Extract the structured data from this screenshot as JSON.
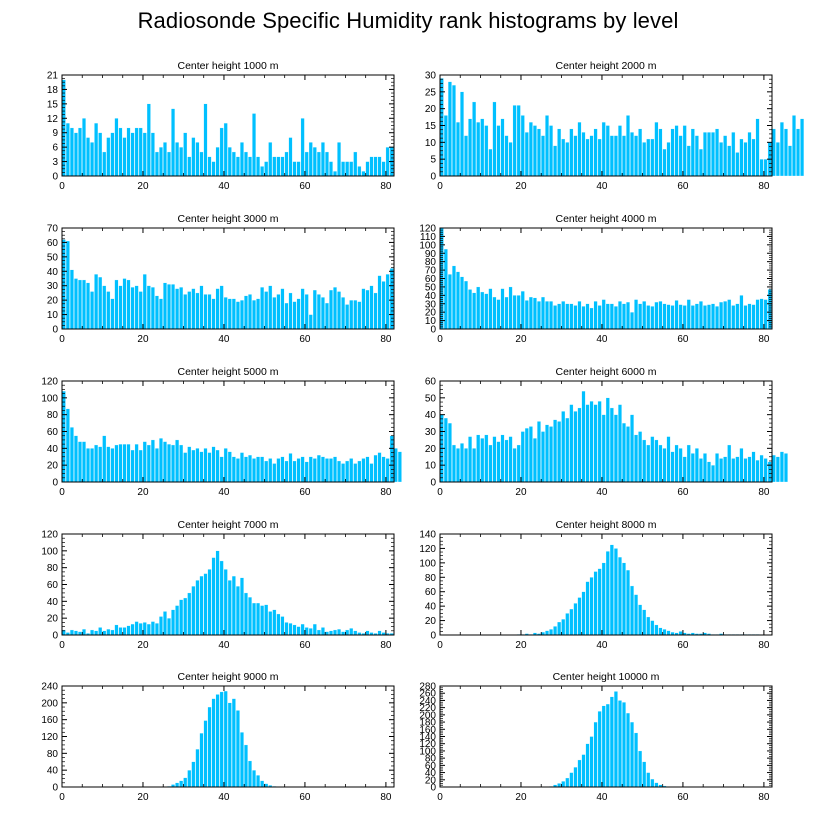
{
  "title": "Radiosonde Specific Humidity rank histograms by level",
  "colors": {
    "bar": "#00c0ff",
    "bar_edge": "#ffffff",
    "axis": "#000000"
  },
  "chart_data": [
    {
      "type": "bar",
      "title": "Center height 1000 m",
      "xlim": [
        0,
        82
      ],
      "xticks": [
        0,
        20,
        40,
        60,
        80
      ],
      "ylim": [
        0,
        21
      ],
      "yticks": [
        0,
        3,
        6,
        9,
        12,
        15,
        18,
        21
      ],
      "values": [
        20,
        11,
        10,
        9,
        10,
        12,
        8,
        7,
        11,
        9,
        5,
        8,
        9,
        12,
        10,
        8,
        10,
        9,
        10,
        10,
        9,
        15,
        9,
        5,
        6,
        7,
        5,
        14,
        7,
        6,
        9,
        4,
        8,
        7,
        5,
        15,
        4,
        3,
        6,
        10,
        11,
        6,
        5,
        4,
        7,
        5,
        4,
        13,
        4,
        2,
        3,
        7,
        4,
        4,
        4,
        5,
        8,
        3,
        3,
        12,
        5,
        7,
        6,
        5,
        7,
        5,
        3,
        1,
        7,
        3,
        3,
        3,
        5,
        2,
        1,
        3,
        4,
        4,
        4,
        3,
        6,
        6
      ]
    },
    {
      "type": "bar",
      "title": "Center height 2000 m",
      "xlim": [
        0,
        82
      ],
      "xticks": [
        0,
        20,
        40,
        60,
        80
      ],
      "ylim": [
        0,
        30
      ],
      "yticks": [
        0,
        5,
        10,
        15,
        20,
        25,
        30
      ],
      "values": [
        29,
        18,
        28,
        27,
        16,
        25,
        12,
        17,
        22,
        16,
        17,
        15,
        8,
        22,
        15,
        17,
        12,
        10,
        21,
        21,
        18,
        13,
        16,
        15,
        14,
        12,
        18,
        15,
        9,
        14,
        11,
        10,
        14,
        12,
        16,
        13,
        11,
        12,
        14,
        11,
        16,
        15,
        12,
        12,
        15,
        12,
        18,
        13,
        12,
        14,
        10,
        11,
        11,
        16,
        14,
        8,
        10,
        14,
        15,
        12,
        15,
        9,
        14,
        12,
        8,
        13,
        13,
        13,
        14,
        10,
        12,
        9,
        13,
        7,
        11,
        10,
        13,
        11,
        17,
        5,
        5,
        10,
        14,
        10,
        16,
        14,
        9,
        18,
        14,
        17
      ]
    },
    {
      "type": "bar",
      "title": "Center height 3000 m",
      "xlim": [
        0,
        82
      ],
      "xticks": [
        0,
        20,
        40,
        60,
        80
      ],
      "ylim": [
        0,
        70
      ],
      "yticks": [
        0,
        10,
        20,
        30,
        40,
        50,
        60,
        70
      ],
      "values": [
        62,
        61,
        41,
        35,
        34,
        34,
        32,
        26,
        38,
        36,
        30,
        26,
        21,
        34,
        30,
        35,
        34,
        29,
        30,
        26,
        38,
        30,
        29,
        23,
        21,
        32,
        31,
        31,
        28,
        29,
        24,
        26,
        28,
        25,
        30,
        24,
        24,
        21,
        28,
        30,
        22,
        21,
        21,
        19,
        20,
        23,
        24,
        20,
        21,
        29,
        26,
        30,
        22,
        24,
        28,
        18,
        25,
        19,
        21,
        28,
        24,
        10,
        27,
        24,
        22,
        18,
        27,
        29,
        26,
        22,
        17,
        20,
        20,
        19,
        28,
        27,
        30,
        25,
        37,
        33,
        38,
        42
      ]
    },
    {
      "type": "bar",
      "title": "Center height 4000 m",
      "xlim": [
        0,
        82
      ],
      "xticks": [
        0,
        20,
        40,
        60,
        80
      ],
      "ylim": [
        0,
        120
      ],
      "yticks": [
        0,
        10,
        20,
        30,
        40,
        50,
        60,
        70,
        80,
        90,
        100,
        110,
        120
      ],
      "values": [
        120,
        95,
        65,
        75,
        68,
        62,
        57,
        47,
        43,
        50,
        44,
        42,
        48,
        38,
        35,
        48,
        38,
        50,
        40,
        40,
        45,
        34,
        38,
        37,
        33,
        38,
        33,
        33,
        28,
        30,
        33,
        30,
        30,
        28,
        33,
        27,
        30,
        25,
        33,
        28,
        35,
        30,
        30,
        27,
        33,
        30,
        32,
        20,
        35,
        30,
        33,
        28,
        27,
        32,
        33,
        30,
        29,
        28,
        34,
        29,
        28,
        35,
        28,
        30,
        33,
        28,
        29,
        30,
        27,
        32,
        33,
        35,
        28,
        30,
        40,
        28,
        30,
        29,
        35,
        36,
        35,
        47
      ]
    },
    {
      "type": "bar",
      "title": "Center height 5000 m",
      "xlim": [
        0,
        82
      ],
      "xticks": [
        0,
        20,
        40,
        60,
        80
      ],
      "ylim": [
        0,
        120
      ],
      "yticks": [
        0,
        20,
        40,
        60,
        80,
        100,
        120
      ],
      "values": [
        108,
        87,
        65,
        55,
        48,
        48,
        40,
        40,
        44,
        42,
        55,
        42,
        40,
        44,
        45,
        45,
        45,
        38,
        45,
        38,
        48,
        44,
        50,
        40,
        52,
        48,
        45,
        44,
        50,
        44,
        35,
        42,
        38,
        40,
        36,
        40,
        35,
        42,
        38,
        30,
        40,
        36,
        30,
        28,
        35,
        30,
        32,
        28,
        30,
        30,
        25,
        28,
        22,
        28,
        30,
        25,
        34,
        25,
        28,
        30,
        24,
        30,
        28,
        32,
        30,
        28,
        28,
        30,
        25,
        22,
        25,
        28,
        22,
        25,
        28,
        30,
        22,
        32,
        35,
        30,
        28,
        55,
        40,
        36
      ]
    },
    {
      "type": "bar",
      "title": "Center height 6000 m",
      "xlim": [
        0,
        82
      ],
      "xticks": [
        0,
        20,
        40,
        60,
        80
      ],
      "ylim": [
        0,
        60
      ],
      "yticks": [
        0,
        10,
        20,
        30,
        40,
        50,
        60
      ],
      "values": [
        40,
        38,
        35,
        22,
        20,
        23,
        20,
        27,
        20,
        28,
        26,
        28,
        22,
        27,
        24,
        28,
        25,
        27,
        20,
        22,
        30,
        32,
        33,
        26,
        36,
        30,
        34,
        33,
        37,
        36,
        42,
        38,
        46,
        42,
        44,
        54,
        46,
        48,
        46,
        48,
        40,
        50,
        44,
        40,
        46,
        35,
        33,
        40,
        28,
        30,
        25,
        22,
        27,
        25,
        22,
        20,
        27,
        18,
        22,
        20,
        15,
        22,
        17,
        20,
        14,
        17,
        12,
        10,
        17,
        14,
        15,
        22,
        14,
        15,
        20,
        14,
        15,
        18,
        13,
        16,
        14,
        12,
        16,
        15,
        18,
        17
      ]
    },
    {
      "type": "bar",
      "title": "Center height 7000 m",
      "xlim": [
        0,
        82
      ],
      "xticks": [
        0,
        20,
        40,
        60,
        80
      ],
      "ylim": [
        0,
        120
      ],
      "yticks": [
        0,
        20,
        40,
        60,
        80,
        100,
        120
      ],
      "values": [
        6,
        3,
        6,
        5,
        4,
        7,
        2,
        6,
        5,
        9,
        5,
        7,
        6,
        12,
        9,
        9,
        11,
        13,
        16,
        14,
        15,
        13,
        16,
        14,
        22,
        28,
        20,
        30,
        35,
        42,
        44,
        50,
        58,
        65,
        70,
        73,
        78,
        92,
        100,
        88,
        78,
        65,
        70,
        58,
        68,
        50,
        45,
        38,
        38,
        35,
        36,
        28,
        30,
        25,
        22,
        15,
        14,
        12,
        10,
        13,
        9,
        8,
        13,
        6,
        9,
        4,
        5,
        6,
        7,
        4,
        6,
        8,
        5,
        3,
        2,
        5,
        3,
        2,
        5,
        3,
        2,
        2
      ]
    },
    {
      "type": "bar",
      "title": "Center height 8000 m",
      "xlim": [
        0,
        82
      ],
      "xticks": [
        0,
        20,
        40,
        60,
        80
      ],
      "ylim": [
        0,
        140
      ],
      "yticks": [
        0,
        20,
        40,
        60,
        80,
        100,
        120,
        140
      ],
      "values": [
        0,
        0,
        0,
        0,
        0,
        0,
        0,
        0,
        0,
        0,
        0,
        0,
        0,
        0,
        0,
        0,
        0,
        0,
        0,
        1,
        1,
        2,
        1,
        3,
        2,
        4,
        6,
        8,
        12,
        18,
        22,
        30,
        36,
        44,
        52,
        60,
        74,
        80,
        88,
        92,
        100,
        116,
        125,
        120,
        108,
        100,
        90,
        68,
        56,
        42,
        35,
        25,
        20,
        14,
        10,
        8,
        6,
        4,
        3,
        5,
        3,
        2,
        3,
        2,
        2,
        3,
        2,
        1,
        1,
        2,
        1,
        1,
        1,
        1,
        1,
        1,
        1,
        1,
        1,
        0,
        0,
        0
      ]
    },
    {
      "type": "bar",
      "title": "Center height 9000 m",
      "xlim": [
        0,
        82
      ],
      "xticks": [
        0,
        20,
        40,
        60,
        80
      ],
      "ylim": [
        0,
        240
      ],
      "yticks": [
        0,
        40,
        80,
        120,
        160,
        200,
        240
      ],
      "values": [
        0,
        0,
        0,
        0,
        0,
        0,
        0,
        0,
        0,
        0,
        0,
        0,
        0,
        0,
        0,
        0,
        0,
        0,
        0,
        0,
        0,
        0,
        0,
        0,
        0,
        0,
        2,
        6,
        10,
        15,
        22,
        40,
        60,
        90,
        128,
        158,
        190,
        210,
        220,
        226,
        228,
        200,
        210,
        182,
        130,
        100,
        62,
        40,
        28,
        15,
        8,
        4,
        2,
        1,
        0,
        0,
        0,
        0,
        0,
        0,
        0,
        0,
        0,
        0,
        0,
        0,
        0,
        0,
        0,
        0,
        0,
        0,
        0,
        0,
        0,
        0,
        0,
        0,
        0,
        0,
        0,
        0
      ]
    },
    {
      "type": "bar",
      "title": "Center height 10000 m",
      "xlim": [
        0,
        82
      ],
      "xticks": [
        0,
        20,
        40,
        60,
        80
      ],
      "ylim": [
        0,
        280
      ],
      "yticks": [
        0,
        20,
        40,
        60,
        80,
        100,
        120,
        140,
        160,
        180,
        200,
        220,
        240,
        260,
        280
      ],
      "values": [
        0,
        0,
        0,
        0,
        0,
        0,
        0,
        0,
        0,
        0,
        0,
        0,
        0,
        0,
        0,
        0,
        0,
        0,
        0,
        0,
        0,
        0,
        0,
        0,
        0,
        0,
        0,
        2,
        6,
        10,
        16,
        25,
        40,
        55,
        75,
        90,
        120,
        140,
        180,
        210,
        225,
        230,
        250,
        265,
        240,
        235,
        205,
        180,
        150,
        100,
        70,
        40,
        22,
        12,
        6,
        3,
        1,
        0,
        0,
        0,
        0,
        0,
        0,
        0,
        0,
        0,
        0,
        0,
        0,
        0,
        0,
        0,
        0,
        0,
        0,
        0,
        0,
        0,
        0,
        0,
        0,
        0
      ]
    }
  ]
}
